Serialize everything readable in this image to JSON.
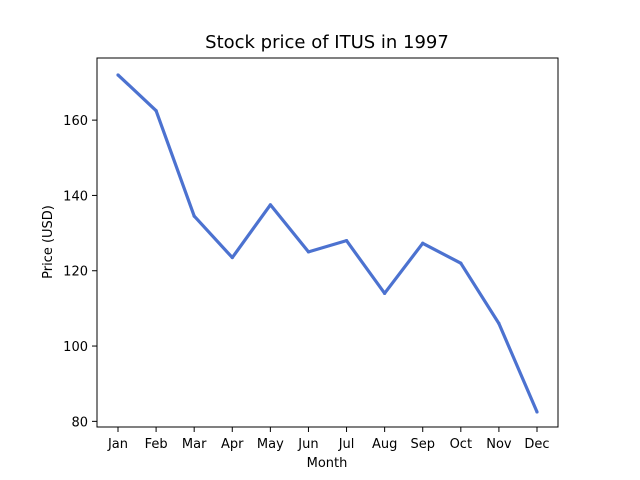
{
  "chart_data": {
    "type": "line",
    "title": "Stock price of ITUS in 1997",
    "xlabel": "Month",
    "ylabel": "Price (USD)",
    "categories": [
      "Jan",
      "Feb",
      "Mar",
      "Apr",
      "May",
      "Jun",
      "Jul",
      "Aug",
      "Sep",
      "Oct",
      "Nov",
      "Dec"
    ],
    "series": [
      {
        "values": [
          172,
          162.5,
          134.5,
          123.5,
          137.5,
          125,
          128,
          114,
          127.3,
          122,
          106,
          82.5
        ],
        "color": "#4c72d0"
      }
    ],
    "ylim": [
      78.5,
      176.5
    ],
    "yticks": [
      80,
      100,
      120,
      140,
      160
    ],
    "grid": false
  }
}
